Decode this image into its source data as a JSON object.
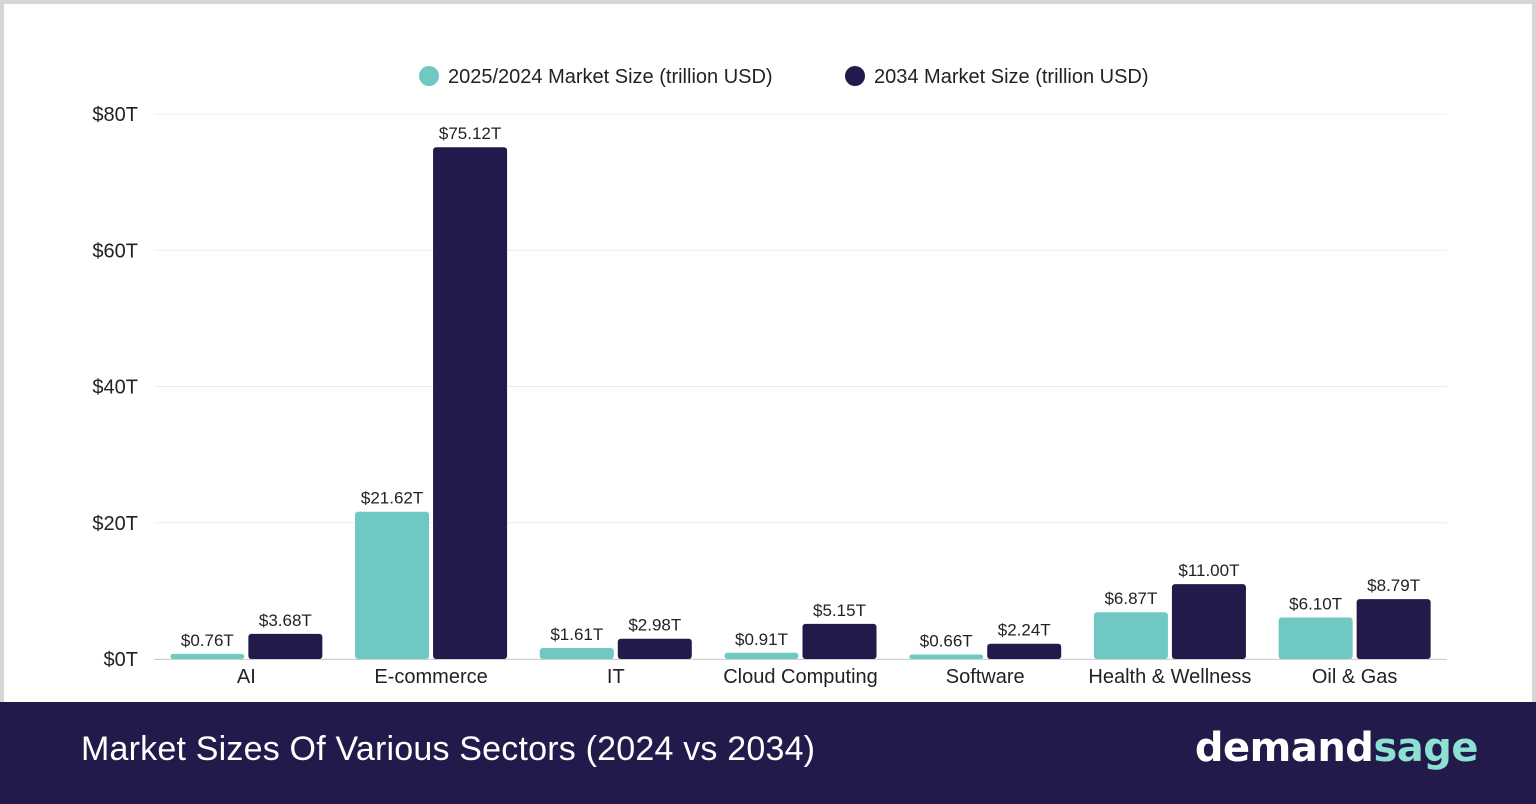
{
  "colors": {
    "series1": "#6fc8c1",
    "series2": "#211a4a",
    "grid": "#ececec",
    "footer_bg": "#211a4a",
    "brand_accent": "#8ee0d3"
  },
  "footer": {
    "title": "Market Sizes Of Various Sectors (2024 vs 2034)",
    "brand_part1": "demand",
    "brand_part2": "sage"
  },
  "chart_data": {
    "type": "bar",
    "categories": [
      "AI",
      "E-commerce",
      "IT",
      "Cloud Computing",
      "Software",
      "Health & Wellness",
      "Oil & Gas"
    ],
    "series": [
      {
        "name": "2025/2024 Market Size (trillion USD)",
        "values": [
          0.76,
          21.62,
          1.61,
          0.91,
          0.66,
          6.87,
          6.1
        ],
        "labels": [
          "$0.76T",
          "$21.62T",
          "$1.61T",
          "$0.91T",
          "$0.66T",
          "$6.87T",
          "$6.10T"
        ]
      },
      {
        "name": "2034 Market Size (trillion USD)",
        "values": [
          3.68,
          75.12,
          2.98,
          5.15,
          2.24,
          11.0,
          8.79
        ],
        "labels": [
          "$3.68T",
          "$75.12T",
          "$2.98T",
          "$5.15T",
          "$2.24T",
          "$11.00T",
          "$8.79T"
        ]
      }
    ],
    "yticks": [
      0,
      20,
      40,
      60,
      80
    ],
    "ytick_labels": [
      "$0T",
      "$20T",
      "$40T",
      "$60T",
      "$80T"
    ],
    "ylim": [
      0,
      80
    ],
    "grid": true,
    "legend_position": "top-center"
  }
}
